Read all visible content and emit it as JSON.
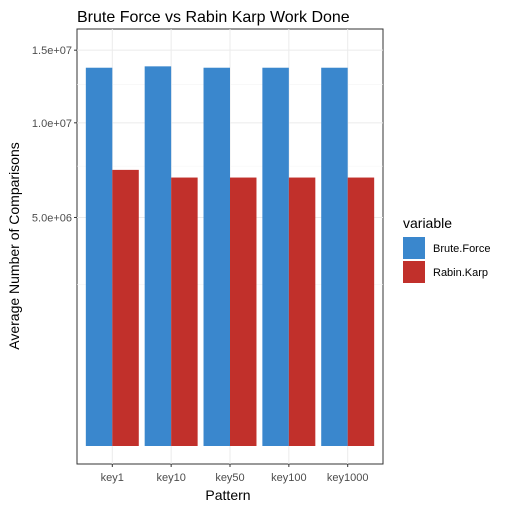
{
  "chart_data": {
    "type": "bar",
    "title": "Brute Force vs Rabin Karp Work Done",
    "xlabel": "Pattern",
    "ylabel": "Average Number of Comparisons",
    "categories": [
      "key1",
      "key10",
      "key50",
      "key100",
      "key1000"
    ],
    "y_scale": "sqrt",
    "ylim": [
      0,
      16000000
    ],
    "yticks": [
      5000000,
      10000000,
      15000000
    ],
    "ytick_labels": [
      "5.0e+06",
      "1.0e+07",
      "1.5e+07"
    ],
    "grid": true,
    "legend": {
      "title": "variable",
      "position": "right"
    },
    "series": [
      {
        "name": "Brute.Force",
        "color": "#3a87cd",
        "values": [
          13700000,
          13800000,
          13700000,
          13700000,
          13700000
        ]
      },
      {
        "name": "Rabin.Karp",
        "color": "#c1302b",
        "values": [
          7300000,
          6900000,
          6900000,
          6900000,
          6900000
        ]
      }
    ]
  }
}
